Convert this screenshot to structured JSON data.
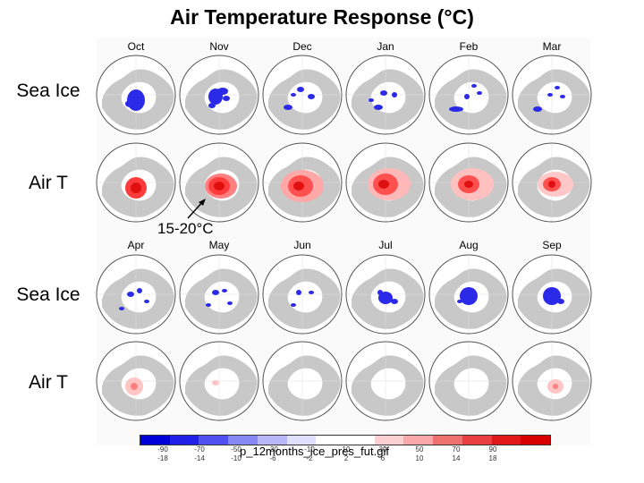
{
  "title": "Air Temperature Response (°C)",
  "months_top": [
    "Oct",
    "Nov",
    "Dec",
    "Jan",
    "Feb",
    "Mar"
  ],
  "months_bottom": [
    "Apr",
    "May",
    "Jun",
    "Jul",
    "Aug",
    "Sep"
  ],
  "row_labels": [
    "Sea Ice",
    "Air T",
    "Sea Ice",
    "Air T"
  ],
  "annotation": "15-20°C",
  "colorbar": {
    "colors": [
      "#0000d8",
      "#2020e8",
      "#5050f0",
      "#8888f4",
      "#b8b8f8",
      "#e0e0fc",
      "#ffffff",
      "#ffffff",
      "#fcd0d0",
      "#f8a8a8",
      "#f07070",
      "#e84040",
      "#e01818",
      "#d80000"
    ],
    "ticks_top": [
      "-90",
      "-70",
      "-50",
      "-30",
      "-10",
      "10",
      "30",
      "50",
      "70",
      "90"
    ],
    "ticks_bottom": [
      "-18",
      "-14",
      "-10",
      "-6",
      "-2",
      "2",
      "6",
      "10",
      "14",
      "18"
    ]
  },
  "filename": "p_12months_ice_pres_fut.gif"
}
